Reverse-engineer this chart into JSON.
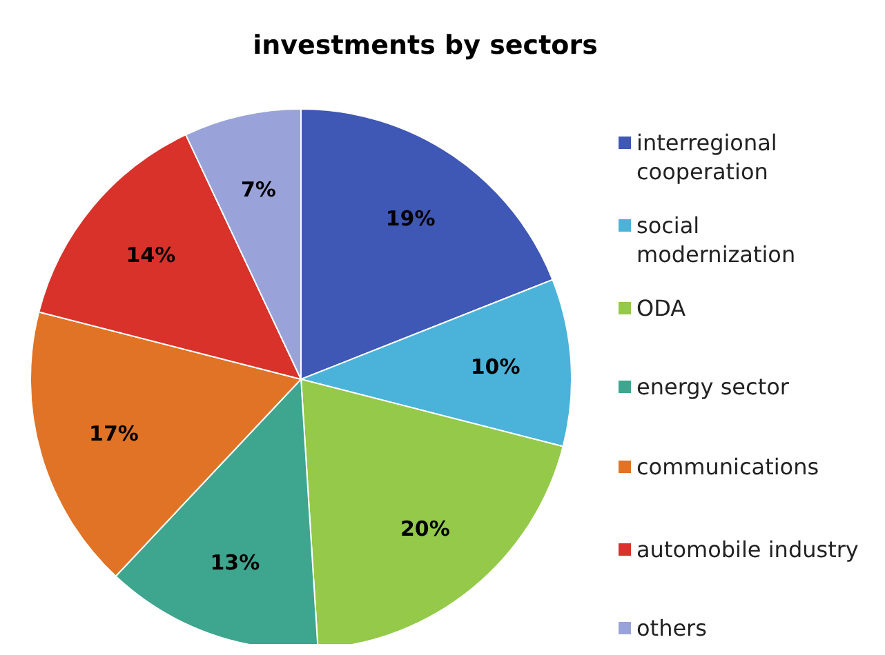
{
  "chart_data": {
    "type": "pie",
    "title": "investments by sectors",
    "categories": [
      "interregional cooperation",
      "social modernization",
      "ODA",
      "energy sector",
      "communications",
      "automobile industry",
      "others"
    ],
    "values": [
      19,
      10,
      20,
      13,
      17,
      14,
      7
    ],
    "value_labels": [
      "19%",
      "10%",
      "20%",
      "13%",
      "17%",
      "14%",
      "7%"
    ],
    "colors": [
      "#3f57b5",
      "#4bb3d9",
      "#94c94a",
      "#3ea58f",
      "#e07326",
      "#d8322a",
      "#9aa3d9"
    ],
    "legend": "right"
  }
}
